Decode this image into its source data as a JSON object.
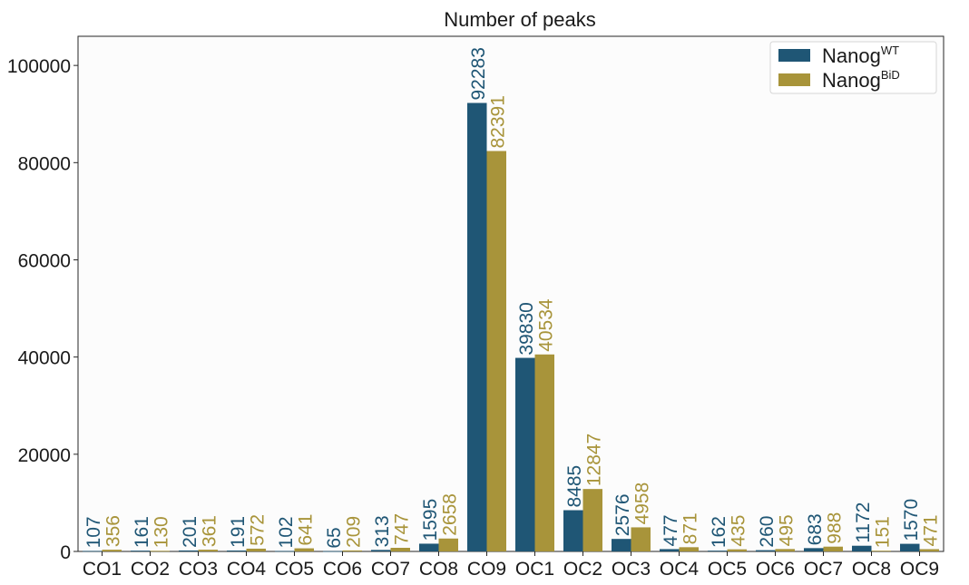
{
  "chart_data": {
    "type": "bar",
    "title": "Number of peaks",
    "xlabel": "",
    "ylabel": "",
    "ylim": [
      0,
      106000
    ],
    "yticks": [
      0,
      20000,
      40000,
      60000,
      80000,
      100000
    ],
    "ytick_labels": [
      "0",
      "20000",
      "40000",
      "60000",
      "80000",
      "100000"
    ],
    "grid": false,
    "legend_position": "top-right",
    "show_value_labels": true,
    "categories": [
      "CO1",
      "CO2",
      "CO3",
      "CO4",
      "CO5",
      "CO6",
      "CO7",
      "CO8",
      "CO9",
      "OC1",
      "OC2",
      "OC3",
      "OC4",
      "OC5",
      "OC6",
      "OC7",
      "OC8",
      "OC9"
    ],
    "series": [
      {
        "name": "Nanog",
        "name_superscript": "WT",
        "color": "#1f5675",
        "values": [
          107,
          161,
          201,
          191,
          102,
          65,
          313,
          1595,
          92283,
          39830,
          8485,
          2576,
          477,
          162,
          260,
          683,
          1172,
          1570
        ]
      },
      {
        "name": "Nanog",
        "name_superscript": "BiD",
        "color": "#a8943a",
        "values": [
          356,
          130,
          361,
          572,
          641,
          209,
          747,
          2658,
          82391,
          40534,
          12847,
          4958,
          871,
          435,
          495,
          988,
          151,
          471
        ]
      }
    ]
  }
}
